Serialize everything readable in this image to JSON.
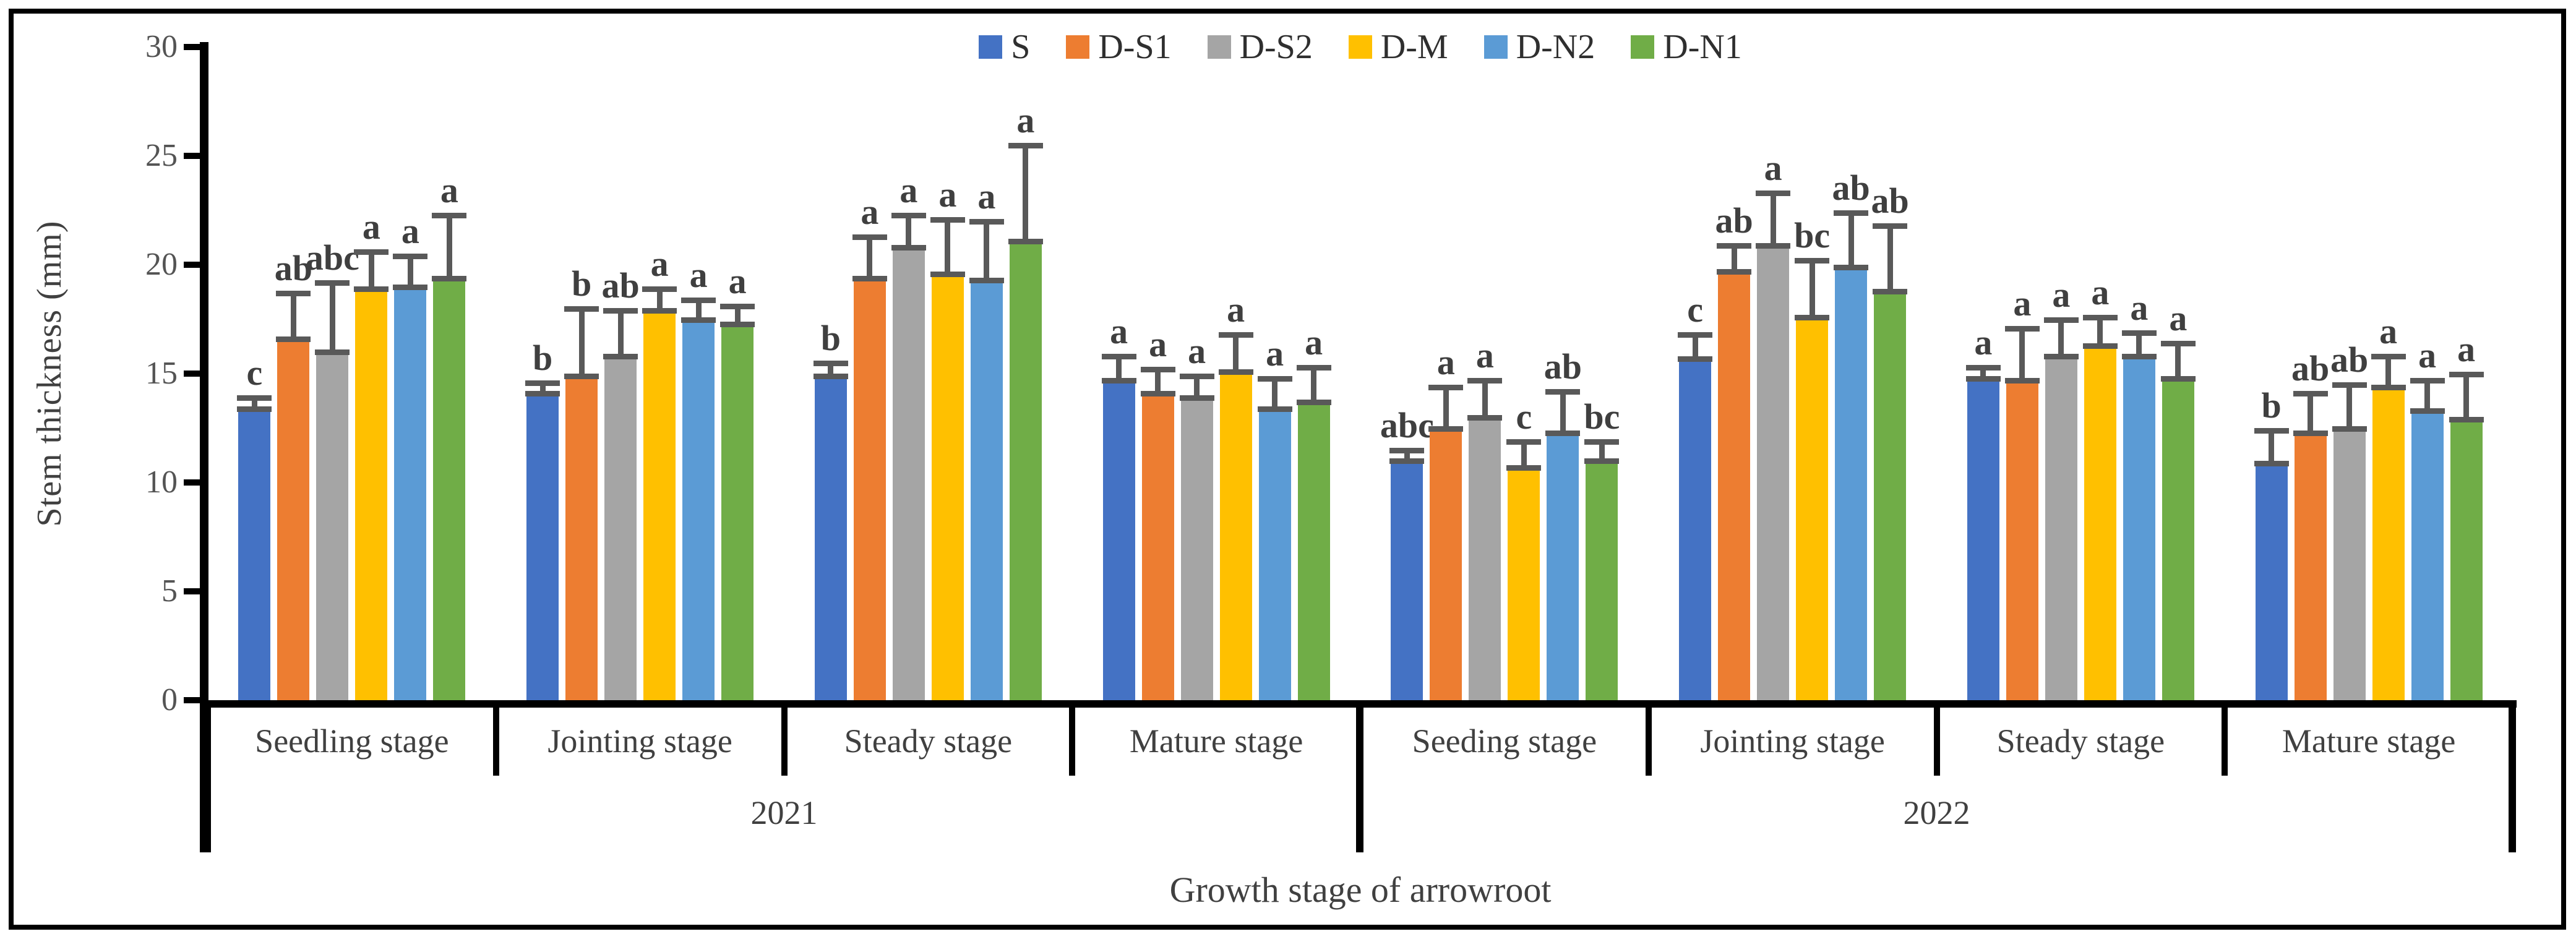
{
  "chart_data": {
    "type": "bar",
    "title": "",
    "ylabel": "Stem thickness (mm)",
    "xlabel": "Growth stage of arrowroot",
    "ylim": [
      0,
      30
    ],
    "yticks": [
      0,
      5,
      10,
      15,
      20,
      25,
      30
    ],
    "grid": false,
    "legend_position": "top-center",
    "error_bar_color": "#595959",
    "axis_color": "#000000",
    "series": [
      {
        "name": "S",
        "color": "#4472C4"
      },
      {
        "name": "D-S1",
        "color": "#ED7D31"
      },
      {
        "name": "D-S2",
        "color": "#A5A5A5"
      },
      {
        "name": "D-M",
        "color": "#FFC000"
      },
      {
        "name": "D-N2",
        "color": "#5B9BD5"
      },
      {
        "name": "D-N1",
        "color": "#70AD47"
      }
    ],
    "groups": [
      {
        "year": "2021",
        "stage": "Seedling stage",
        "values": [
          13.3,
          16.5,
          15.9,
          18.8,
          18.9,
          19.3
        ],
        "errors": [
          0.5,
          2.1,
          3.2,
          1.7,
          1.4,
          2.9
        ],
        "letters": [
          "c",
          "ab",
          "abc",
          "a",
          "a",
          "a"
        ]
      },
      {
        "year": "2021",
        "stage": "Jointing stage",
        "values": [
          14.0,
          14.8,
          15.7,
          17.8,
          17.4,
          17.2
        ],
        "errors": [
          0.5,
          3.1,
          2.1,
          1.0,
          0.9,
          0.8
        ],
        "letters": [
          "b",
          "b",
          "ab",
          "a",
          "a",
          "a"
        ]
      },
      {
        "year": "2021",
        "stage": "Steady stage",
        "values": [
          14.8,
          19.3,
          20.7,
          19.5,
          19.2,
          21.0
        ],
        "errors": [
          0.6,
          1.9,
          1.5,
          2.5,
          2.7,
          4.4
        ],
        "letters": [
          "b",
          "a",
          "a",
          "a",
          "a",
          "a"
        ]
      },
      {
        "year": "2021",
        "stage": "Mature stage",
        "values": [
          14.6,
          14.0,
          13.8,
          15.0,
          13.3,
          13.6
        ],
        "errors": [
          1.1,
          1.1,
          1.0,
          1.7,
          1.4,
          1.6
        ],
        "letters": [
          "a",
          "a",
          "a",
          "a",
          "a",
          "a"
        ]
      },
      {
        "year": "2022",
        "stage": "Seeding stage",
        "values": [
          10.9,
          12.4,
          12.9,
          10.6,
          12.2,
          10.9
        ],
        "errors": [
          0.5,
          1.9,
          1.7,
          1.2,
          1.9,
          0.9
        ],
        "letters": [
          "abc",
          "a",
          "a",
          "c",
          "ab",
          "bc"
        ]
      },
      {
        "year": "2022",
        "stage": "Jointing stage",
        "values": [
          15.6,
          19.6,
          20.8,
          17.5,
          19.8,
          18.7
        ],
        "errors": [
          1.1,
          1.2,
          2.4,
          2.6,
          2.5,
          3.0
        ],
        "letters": [
          "c",
          "ab",
          "a",
          "bc",
          "ab",
          "ab"
        ]
      },
      {
        "year": "2022",
        "stage": "Steady stage",
        "values": [
          14.7,
          14.6,
          15.7,
          16.2,
          15.7,
          14.7
        ],
        "errors": [
          0.5,
          2.4,
          1.7,
          1.3,
          1.1,
          1.6
        ],
        "letters": [
          "a",
          "a",
          "a",
          "a",
          "a",
          "a"
        ]
      },
      {
        "year": "2022",
        "stage": "Mature stage",
        "values": [
          10.8,
          12.2,
          12.4,
          14.3,
          13.2,
          12.8
        ],
        "errors": [
          1.5,
          1.8,
          2.0,
          1.4,
          1.4,
          2.1
        ],
        "letters": [
          "b",
          "ab",
          "ab",
          "a",
          "a",
          "a"
        ]
      }
    ],
    "year_spans": [
      {
        "label": "2021",
        "groups": 4
      },
      {
        "label": "2022",
        "groups": 4
      }
    ]
  }
}
